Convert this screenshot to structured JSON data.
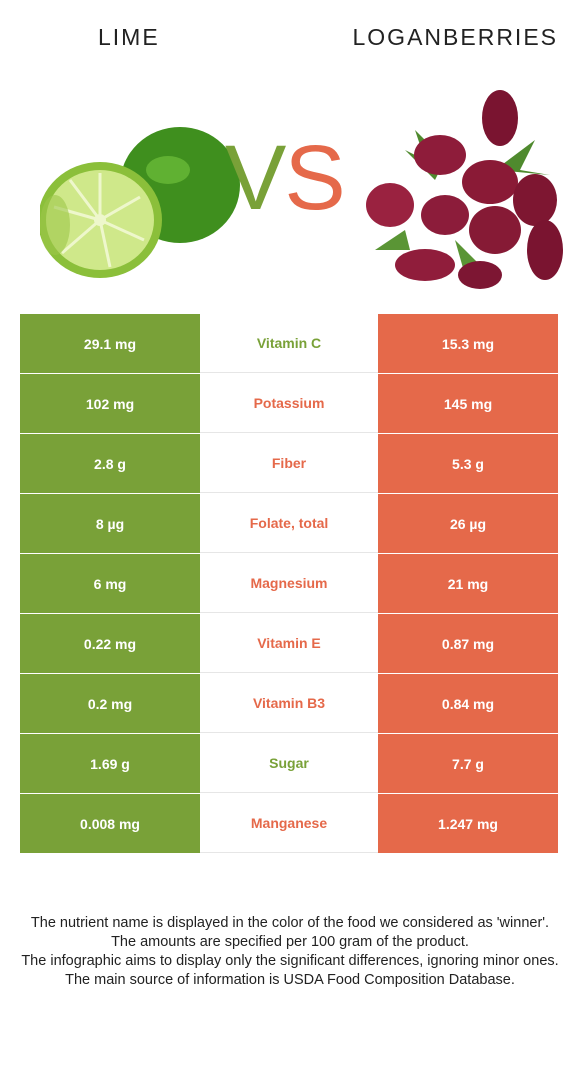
{
  "left_food": {
    "name": "LIME",
    "color": "#79a138"
  },
  "right_food": {
    "name": "LOGANBERRIES",
    "color": "#e5694a"
  },
  "vs": {
    "v": "V",
    "s": "S"
  },
  "rows": [
    {
      "nutrient": "Vitamin C",
      "left": "29.1 mg",
      "right": "15.3 mg",
      "winner": "left",
      "winner_color": "#79a138"
    },
    {
      "nutrient": "Potassium",
      "left": "102 mg",
      "right": "145 mg",
      "winner": "right",
      "winner_color": "#e5694a"
    },
    {
      "nutrient": "Fiber",
      "left": "2.8 g",
      "right": "5.3 g",
      "winner": "right",
      "winner_color": "#e5694a"
    },
    {
      "nutrient": "Folate, total",
      "left": "8 µg",
      "right": "26 µg",
      "winner": "right",
      "winner_color": "#e5694a"
    },
    {
      "nutrient": "Magnesium",
      "left": "6 mg",
      "right": "21 mg",
      "winner": "right",
      "winner_color": "#e5694a"
    },
    {
      "nutrient": "Vitamin E",
      "left": "0.22 mg",
      "right": "0.87 mg",
      "winner": "right",
      "winner_color": "#e5694a"
    },
    {
      "nutrient": "Vitamin B3",
      "left": "0.2 mg",
      "right": "0.84 mg",
      "winner": "right",
      "winner_color": "#e5694a"
    },
    {
      "nutrient": "Sugar",
      "left": "1.69 g",
      "right": "7.7 g",
      "winner": "left",
      "winner_color": "#79a138"
    },
    {
      "nutrient": "Manganese",
      "left": "0.008 mg",
      "right": "1.247 mg",
      "winner": "right",
      "winner_color": "#e5694a"
    }
  ],
  "notes": [
    "The nutrient name is displayed in the color of the food we considered as 'winner'.",
    "The amounts are specified per 100 gram of the product.",
    "The infographic aims to display only the significant differences, ignoring minor ones.",
    "The main source of information is USDA Food Composition Database."
  ]
}
